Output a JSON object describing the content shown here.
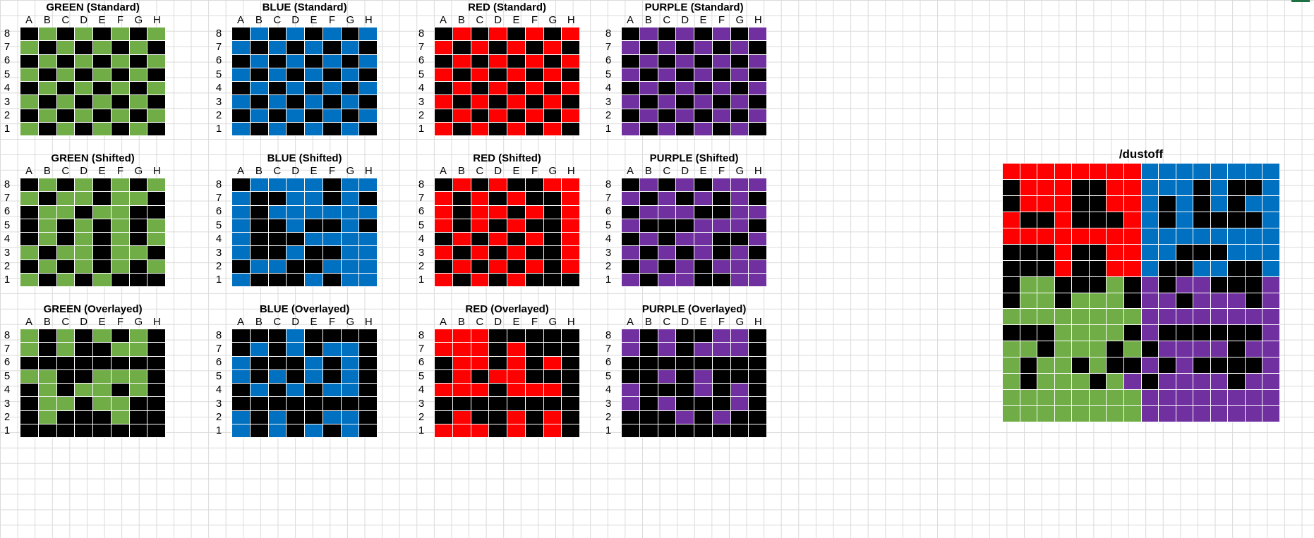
{
  "colors": {
    "green": "#70ad47",
    "blue": "#0070c0",
    "red": "#ff0000",
    "purple": "#7030a0",
    "black": "#000000",
    "grid_line": "#dadada"
  },
  "col_labels": [
    "A",
    "B",
    "C",
    "D",
    "E",
    "F",
    "G",
    "H"
  ],
  "row_labels": [
    "8",
    "7",
    "6",
    "5",
    "4",
    "3",
    "2",
    "1"
  ],
  "boards": [
    {
      "title": "GREEN (Standard)",
      "color": "green",
      "rows": [
        "10101010",
        "01010101",
        "10101010",
        "01010101",
        "10101010",
        "01010101",
        "10101010",
        "01010101"
      ]
    },
    {
      "title": "BLUE (Standard)",
      "color": "blue",
      "rows": [
        "10101010",
        "01010101",
        "10101010",
        "01010101",
        "10101010",
        "01010101",
        "10101010",
        "01010101"
      ]
    },
    {
      "title": "RED (Standard)",
      "color": "red",
      "rows": [
        "10101010",
        "01010101",
        "10101010",
        "01010101",
        "10101010",
        "01010101",
        "10101010",
        "01010101"
      ]
    },
    {
      "title": "PURPLE (Standard)",
      "color": "purple",
      "rows": [
        "10101010",
        "01010101",
        "10101010",
        "01010101",
        "10101010",
        "01010101",
        "10101010",
        "01010101"
      ]
    },
    {
      "title": "GREEN (Shifted)",
      "color": "green",
      "rows": [
        "10101010",
        "01001001",
        "10010011",
        "10101010",
        "10101010",
        "01001001",
        "10101010",
        "01010111"
      ]
    },
    {
      "title": "BLUE (Shifted)",
      "color": "blue",
      "rows": [
        "10000100",
        "01100101",
        "01000000",
        "01101101",
        "01110000",
        "01101100",
        "10011000",
        "01110100"
      ]
    },
    {
      "title": "RED (Shifted)",
      "color": "red",
      "rows": [
        "10101100",
        "01010110",
        "01001010",
        "01010110",
        "10101010",
        "01010110",
        "10101010",
        "01010111"
      ]
    },
    {
      "title": "PURPLE (Shifted)",
      "color": "purple",
      "rows": [
        "10101000",
        "01010101",
        "10001100",
        "01110001",
        "10100110",
        "01010101",
        "10101000",
        "01001100"
      ]
    },
    {
      "title": "GREEN (Overlayed)",
      "color": "green",
      "rows": [
        "01010101",
        "01011001",
        "11111111",
        "00110001",
        "10100101",
        "10010011",
        "10111011",
        "11111111"
      ]
    },
    {
      "title": "BLUE (Overlayed)",
      "color": "blue",
      "rows": [
        "11101111",
        "10101001",
        "01110101",
        "01010101",
        "10101001",
        "11111111",
        "01011001",
        "01010101"
      ]
    },
    {
      "title": "RED (Overlayed)",
      "color": "red",
      "rows": [
        "00011111",
        "00010111",
        "10010101",
        "10100111",
        "00010001",
        "11111111",
        "10110101",
        "00010101"
      ]
    },
    {
      "title": "PURPLE (Overlayed)",
      "color": "purple",
      "rows": [
        "01011001",
        "01010001",
        "11111111",
        "11010111",
        "01110101",
        "01011101",
        "11101011",
        "11111111"
      ]
    }
  ],
  "dustoff": {
    "title": "/dustoff",
    "rows": [
      "RRRRRRRRBBBBBBBB",
      "KRRRKKRRBBBKBKKB",
      "KRRRKKRRBKBKBKBB",
      "RKKRKKKRBKBKKKKB",
      "RRRRRRRRBBBBBBBB",
      "KKKRKKRRBBKKKBBB",
      "KKKRKKRRBKKBBKKB",
      "KGGKKKGKPKPPKKKP",
      "KGGKGGGKPPKPPPKP",
      "GGGGGGGGPPPPPPPP",
      "KKKGGGGKPKKKKKKP",
      "GGKGGGKGKPPPPKPP",
      "GKGGKGKKPKPKKKKP",
      "GKGGGKGPKPPPPKPP",
      "GGGGGGGGPPPPPPPP",
      "GGGGGGGGPPPPPPPP"
    ]
  }
}
